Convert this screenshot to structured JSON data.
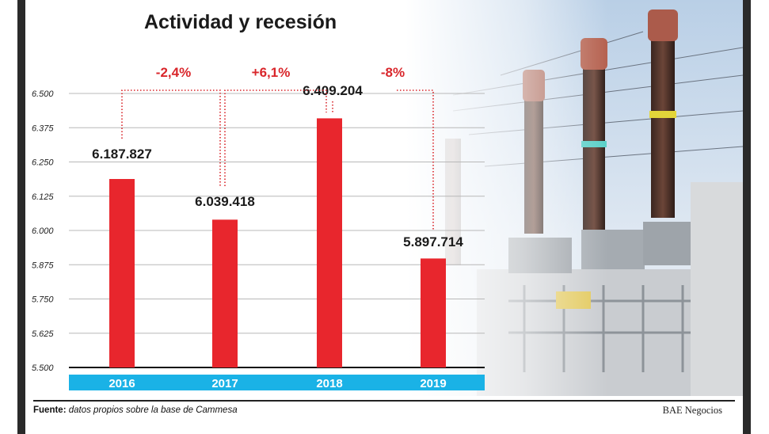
{
  "title": "Actividad y recesión",
  "source_label": "Fuente:",
  "source_text": "datos propios sobre la base de Cammesa",
  "brand": "BAE Negocios",
  "colors": {
    "bar": "#e8262d",
    "axis_band": "#1ab2e6",
    "change": "#d9262b",
    "photo_sky": "#c9dbee"
  },
  "chart_data": {
    "type": "bar",
    "title": "Actividad y recesión",
    "categories": [
      "2016",
      "2017",
      "2018",
      "2019"
    ],
    "values": [
      6187827,
      6039418,
      6409204,
      5897714
    ],
    "value_labels": [
      "6.187.827",
      "6.039.418",
      "6.409.204",
      "5.897.714"
    ],
    "ylim": [
      5500,
      6500
    ],
    "yscale_note": "",
    "y_ticks": [
      5500,
      5625,
      5750,
      5875,
      6000,
      6125,
      6250,
      6375,
      6500
    ],
    "y_tick_labels": [
      "5.500",
      "5.625",
      "5.750",
      "5.875",
      "6.000",
      "6.125",
      "6.250",
      "6.375",
      "6.500"
    ],
    "grid": true,
    "changes": [
      {
        "from": "2016",
        "to": "2017",
        "label": "-2,4%"
      },
      {
        "from": "2017",
        "to": "2018",
        "label": "+6,1%"
      },
      {
        "from": "2018",
        "to": "2019",
        "label": "-8%"
      }
    ]
  }
}
